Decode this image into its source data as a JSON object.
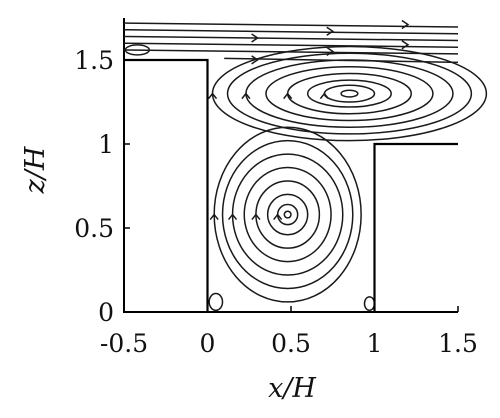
{
  "chart_data": {
    "type": "streamline",
    "xlabel": "x/H",
    "ylabel": "z/H",
    "xlim": [
      -0.5,
      1.5
    ],
    "ylim": [
      0,
      1.75
    ],
    "x_ticks": [
      "-0.5",
      "0",
      "0.5",
      "1",
      "1.5"
    ],
    "y_ticks": [
      "0",
      "0.5",
      "1",
      "1.5"
    ],
    "x_tick_values": [
      -0.5,
      0,
      0.5,
      1,
      1.5
    ],
    "y_tick_values": [
      0,
      0.5,
      1,
      1.5
    ],
    "walls": [
      [
        [
          -0.5,
          1.5
        ],
        [
          0,
          1.5
        ],
        [
          0,
          0
        ]
      ],
      [
        [
          1,
          0
        ],
        [
          1,
          1
        ],
        [
          1.5,
          1
        ]
      ]
    ],
    "vortices": [
      {
        "name": "upper",
        "cx": 0.85,
        "cy": 1.3,
        "rx": [
          0.05,
          0.15,
          0.25,
          0.37,
          0.5,
          0.62,
          0.73,
          0.82
        ],
        "ry": [
          0.02,
          0.05,
          0.08,
          0.12,
          0.16,
          0.2,
          0.24,
          0.28
        ]
      },
      {
        "name": "lower",
        "cx": 0.48,
        "cy": 0.58,
        "rx": [
          0.02,
          0.06,
          0.12,
          0.19,
          0.26,
          0.33,
          0.39,
          0.44
        ],
        "ry": [
          0.02,
          0.06,
          0.12,
          0.2,
          0.28,
          0.36,
          0.44,
          0.52
        ]
      }
    ],
    "free_stream_z": [
      1.51,
      1.56,
      1.6,
      1.64,
      1.68,
      1.72
    ],
    "corner_vortices": [
      {
        "cx": 0.05,
        "cy": 0.06,
        "rx": 0.04,
        "ry": 0.05
      },
      {
        "cx": 0.97,
        "cy": 0.05,
        "rx": 0.03,
        "ry": 0.04
      }
    ]
  }
}
